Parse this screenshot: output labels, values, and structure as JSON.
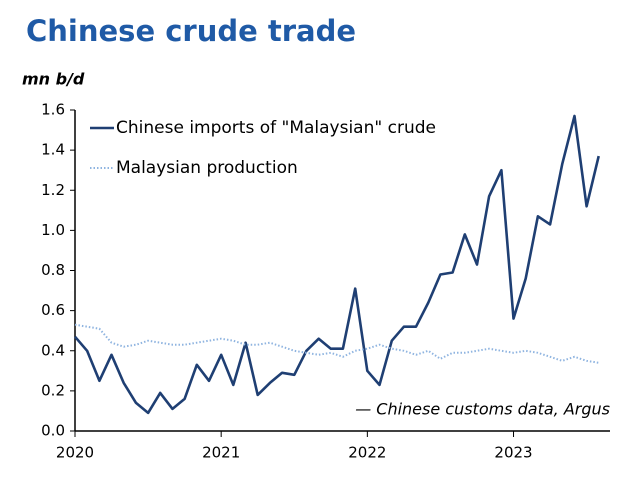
{
  "chart_data": {
    "type": "line",
    "title": "Chinese crude trade",
    "y_label": "mn b/d",
    "annotation": "— Chinese customs data, Argus",
    "x": [
      2020.0,
      2020.083,
      2020.167,
      2020.25,
      2020.333,
      2020.417,
      2020.5,
      2020.583,
      2020.667,
      2020.75,
      2020.833,
      2020.917,
      2021.0,
      2021.083,
      2021.167,
      2021.25,
      2021.333,
      2021.417,
      2021.5,
      2021.583,
      2021.667,
      2021.75,
      2021.833,
      2021.917,
      2022.0,
      2022.083,
      2022.167,
      2022.25,
      2022.333,
      2022.417,
      2022.5,
      2022.583,
      2022.667,
      2022.75,
      2022.833,
      2022.917,
      2023.0,
      2023.083,
      2023.167,
      2023.25,
      2023.333,
      2023.417,
      2023.5,
      2023.583
    ],
    "series": [
      {
        "name": "Chinese imports of \"Malaysian\" crude",
        "color": "#1f3f73",
        "style": "solid",
        "values": [
          0.47,
          0.4,
          0.25,
          0.38,
          0.24,
          0.14,
          0.09,
          0.19,
          0.11,
          0.16,
          0.33,
          0.25,
          0.38,
          0.23,
          0.44,
          0.18,
          0.24,
          0.29,
          0.28,
          0.4,
          0.46,
          0.41,
          0.41,
          0.71,
          0.3,
          0.23,
          0.45,
          0.52,
          0.52,
          0.64,
          0.78,
          0.79,
          0.98,
          0.83,
          1.17,
          1.3,
          0.56,
          0.76,
          1.07,
          1.03,
          1.33,
          1.57,
          1.12,
          1.37
        ]
      },
      {
        "name": "Malaysian production",
        "color": "#8fb4e0",
        "style": "dotted",
        "values": [
          0.53,
          0.52,
          0.51,
          0.44,
          0.42,
          0.43,
          0.45,
          0.44,
          0.43,
          0.43,
          0.44,
          0.45,
          0.46,
          0.45,
          0.43,
          0.43,
          0.44,
          0.42,
          0.4,
          0.39,
          0.38,
          0.39,
          0.37,
          0.4,
          0.41,
          0.43,
          0.41,
          0.4,
          0.38,
          0.4,
          0.36,
          0.39,
          0.39,
          0.4,
          0.41,
          0.4,
          0.39,
          0.4,
          0.39,
          0.37,
          0.35,
          0.37,
          0.35,
          0.34
        ]
      }
    ],
    "xlim": [
      2020,
      2023.66
    ],
    "xticks": [
      2020,
      2021,
      2022,
      2023
    ],
    "ylim": [
      0,
      1.6
    ],
    "yticks": [
      {
        "value": 0,
        "label": "0.0"
      },
      {
        "value": 0.2,
        "label": "0.2"
      },
      {
        "value": 0.4,
        "label": "0.4"
      },
      {
        "value": 0.6,
        "label": "0.6"
      },
      {
        "value": 0.8,
        "label": "0.8"
      },
      {
        "value": 1.0,
        "label": "1.0"
      },
      {
        "value": 1.2,
        "label": "1.2"
      },
      {
        "value": 1.4,
        "label": "1.4"
      },
      {
        "value": 1.6,
        "label": "1.6"
      }
    ],
    "grid": false,
    "legend": "top-left"
  }
}
